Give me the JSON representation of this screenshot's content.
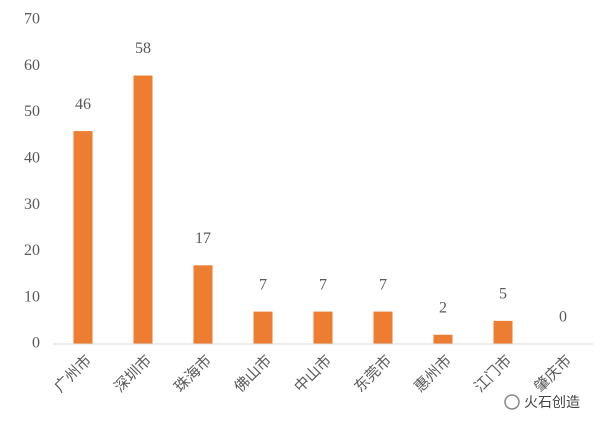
{
  "chart_data": {
    "type": "bar",
    "categories": [
      "广州市",
      "深圳市",
      "珠海市",
      "佛山市",
      "中山市",
      "东莞市",
      "惠州市",
      "江门市",
      "肇庆市"
    ],
    "values": [
      46,
      58,
      17,
      7,
      7,
      7,
      2,
      5,
      0
    ],
    "color": "#ed7d31",
    "ylim": [
      0,
      70
    ],
    "yticks": [
      0,
      10,
      20,
      30,
      40,
      50,
      60,
      70
    ],
    "grid": false,
    "watermark": "火石创造"
  }
}
